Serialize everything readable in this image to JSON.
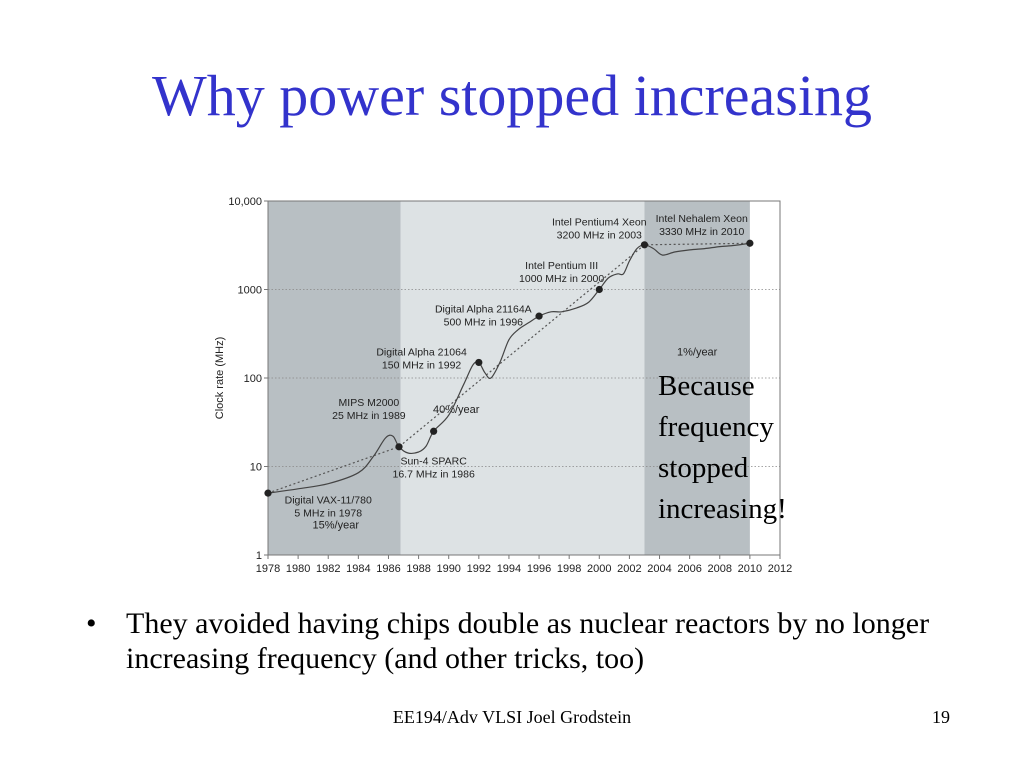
{
  "slide": {
    "title": "Why power stopped increasing",
    "callout_lines": [
      "Because",
      "frequency",
      "stopped",
      "increasing!"
    ],
    "bullet": "They avoided having chips double as nuclear reactors by no longer increasing frequency (and other tricks, too)",
    "footer": "EE194/Adv VLSI Joel Grodstein",
    "page_number": "19"
  },
  "colors": {
    "title": "#3333cc",
    "shade_dark": "#b8bfc3",
    "shade_light": "#dde2e4",
    "curve": "#444444",
    "trend": "#555555"
  },
  "chart_data": {
    "type": "line",
    "ylabel": "Clock rate (MHz)",
    "xlabel": "",
    "y_scale": "log",
    "ylim": [
      1,
      10000
    ],
    "xlim": [
      1978,
      2012
    ],
    "x_ticks": [
      1978,
      1980,
      1982,
      1984,
      1986,
      1988,
      1990,
      1992,
      1994,
      1996,
      1998,
      2000,
      2002,
      2004,
      2006,
      2008,
      2010,
      2012
    ],
    "y_ticks": [
      1,
      10,
      100,
      1000,
      10000
    ],
    "y_tick_labels": [
      "1",
      "10",
      "100",
      "1000",
      "10,000"
    ],
    "grid": "horizontal dotted",
    "regions": [
      {
        "from": 1978,
        "to": 1986.8,
        "label": "15%/year",
        "label_x": 1982.5,
        "label_y": 2.0,
        "shade": "dark"
      },
      {
        "from": 1986.8,
        "to": 2003,
        "label": "40%/year",
        "label_x": 1990.5,
        "label_y": 40,
        "shade": "light"
      },
      {
        "from": 2003,
        "to": 2010,
        "label": "1%/year",
        "label_x": 2006.5,
        "label_y": 180,
        "shade": "dark"
      }
    ],
    "trend": {
      "x": [
        1978,
        1986.7,
        2003,
        2010
      ],
      "y": [
        5,
        16.7,
        3200,
        3330
      ]
    },
    "curve": {
      "x": [
        1978,
        1980,
        1982,
        1984,
        1985,
        1985.8,
        1986.3,
        1986.7,
        1987.3,
        1988,
        1988.5,
        1989,
        1990,
        1991,
        1991.6,
        1992,
        1992.4,
        1992.8,
        1993.4,
        1994,
        1994.6,
        1995.3,
        1996,
        1996.8,
        1997.5,
        1998.5,
        1999.3,
        2000,
        2000.6,
        2001.2,
        2001.6,
        2002,
        2002.5,
        2003,
        2003.6,
        2004.2,
        2005,
        2006,
        2007,
        2008,
        2009,
        2010
      ],
      "y": [
        5,
        5.6,
        6.4,
        8.5,
        13,
        21,
        22,
        16.7,
        14.2,
        14.6,
        17,
        25,
        38,
        85,
        140,
        150,
        115,
        100,
        150,
        270,
        350,
        420,
        500,
        560,
        560,
        620,
        720,
        1000,
        1350,
        1500,
        1500,
        2100,
        2900,
        3200,
        2900,
        2450,
        2650,
        2800,
        2900,
        3050,
        3150,
        3330
      ]
    },
    "points": [
      {
        "year": 1978,
        "mhz": 5,
        "label": [
          "Digital VAX-11/780",
          "5 MHz in 1978"
        ],
        "lx": 1982,
        "ly": 3.8
      },
      {
        "year": 1986.7,
        "mhz": 16.7,
        "label": [
          "Sun-4 SPARC",
          "16.7 MHz in 1986"
        ],
        "lx": 1989,
        "ly": 10.5
      },
      {
        "year": 1989,
        "mhz": 25,
        "label": [
          "MIPS M2000",
          "25 MHz in 1989"
        ],
        "lx": 1984.7,
        "ly": 48
      },
      {
        "year": 1992,
        "mhz": 150,
        "label": [
          "Digital Alpha 21064",
          "150 MHz in 1992"
        ],
        "lx": 1988.2,
        "ly": 180
      },
      {
        "year": 1996,
        "mhz": 500,
        "label": [
          "Digital Alpha 21164A",
          "500 MHz in 1996"
        ],
        "lx": 1992.3,
        "ly": 550
      },
      {
        "year": 2000,
        "mhz": 1000,
        "label": [
          "Intel Pentium III",
          "1000 MHz in 2000"
        ],
        "lx": 1997.5,
        "ly": 1700
      },
      {
        "year": 2003,
        "mhz": 3200,
        "label": [
          "Intel Pentium4 Xeon",
          "3200 MHz in 2003"
        ],
        "lx": 2000,
        "ly": 5300
      },
      {
        "year": 2010,
        "mhz": 3330,
        "label": [
          "Intel Nehalem Xeon",
          "3330 MHz in 2010"
        ],
        "lx": 2006.8,
        "ly": 5800
      }
    ]
  }
}
